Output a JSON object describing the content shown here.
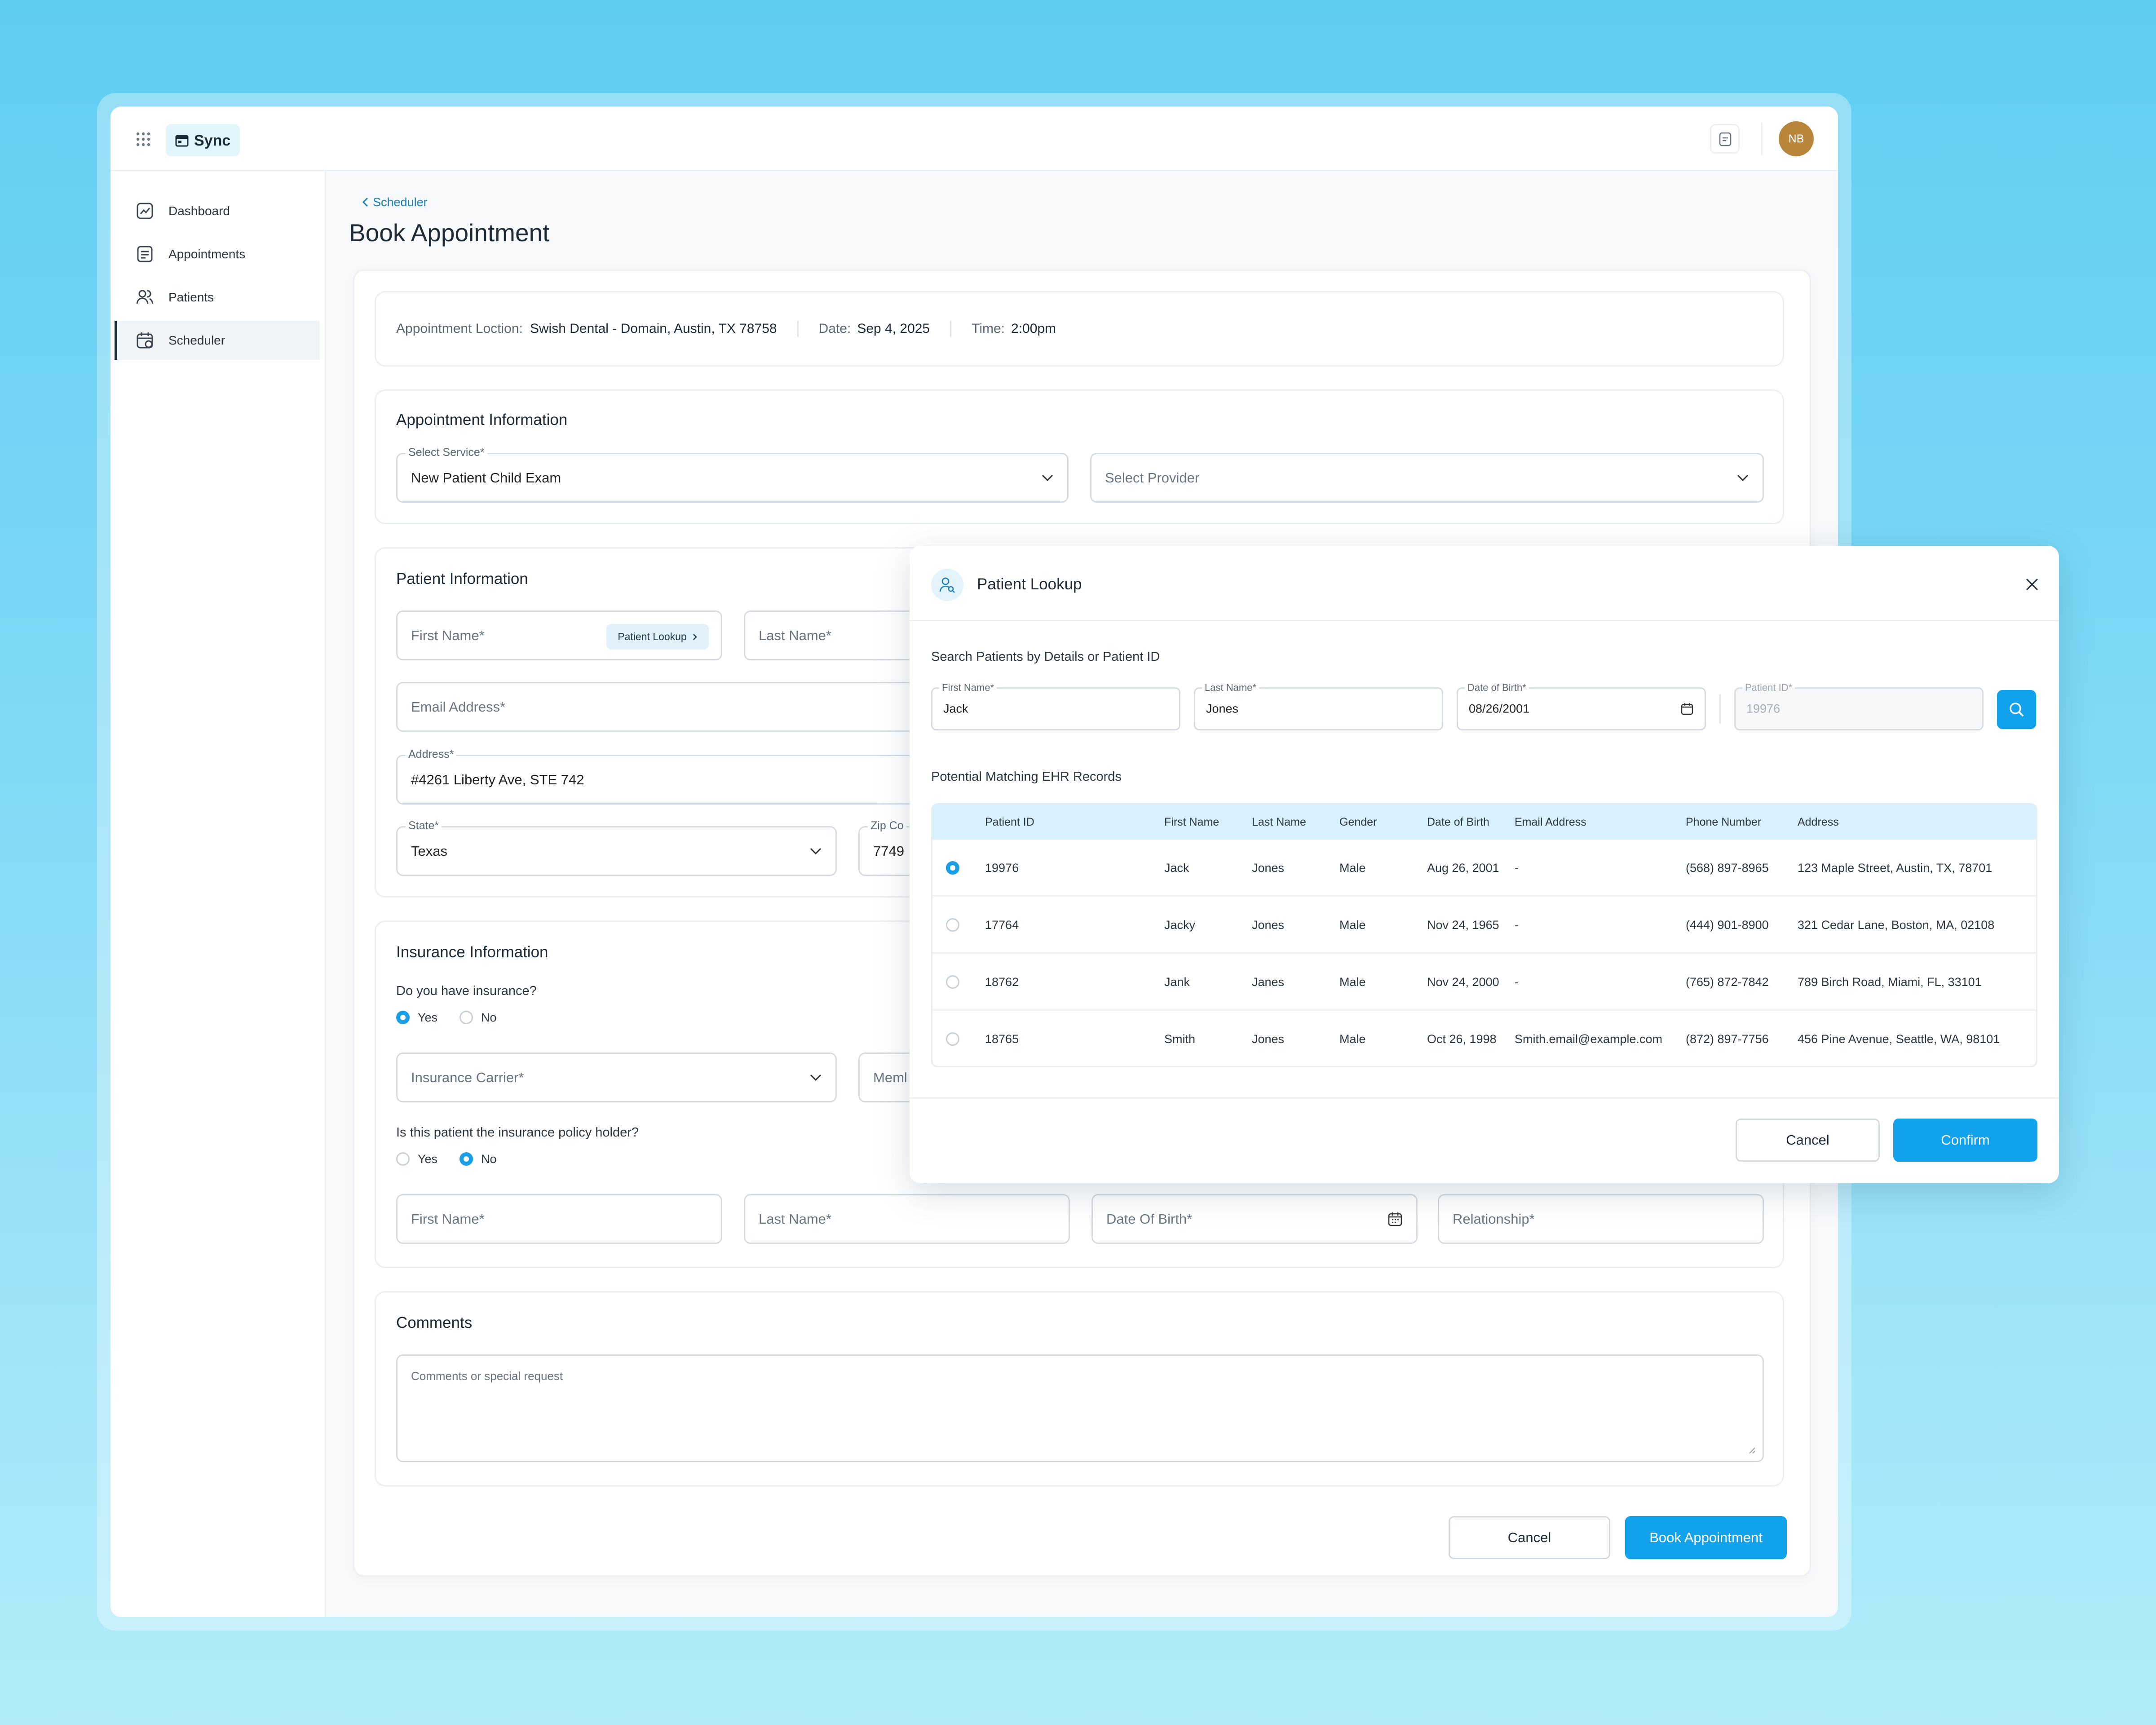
{
  "app": {
    "brand": "Sync",
    "avatar_initials": "NB"
  },
  "sidebar": {
    "items": [
      {
        "label": "Dashboard"
      },
      {
        "label": "Appointments"
      },
      {
        "label": "Patients"
      },
      {
        "label": "Scheduler"
      }
    ]
  },
  "page": {
    "breadcrumb": "Scheduler",
    "title": "Book Appointment"
  },
  "summary": {
    "location_label": "Appointment Loction:",
    "location_value": "Swish Dental - Domain, Austin, TX 78758",
    "date_label": "Date:",
    "date_value": "Sep 4, 2025",
    "time_label": "Time:",
    "time_value": "2:00pm"
  },
  "appointment_info": {
    "title": "Appointment Information",
    "service_label": "Select Service*",
    "service_value": "New Patient Child Exam",
    "provider_placeholder": "Select Provider"
  },
  "patient_info": {
    "title": "Patient Information",
    "first_name_placeholder": "First Name*",
    "lookup_button": "Patient Lookup",
    "last_name_placeholder": "Last Name*",
    "email_placeholder": "Email Address*",
    "address_label": "Address*",
    "address_value": "#4261 Liberty Ave, STE 742",
    "state_label": "State*",
    "state_value": "Texas",
    "zip_label": "Zip Co",
    "zip_value": "7749"
  },
  "insurance": {
    "title": "Insurance Information",
    "question1": "Do you have insurance?",
    "yes": "Yes",
    "no": "No",
    "carrier_placeholder": "Insurance Carrier*",
    "member_placeholder": "Meml",
    "question2": "Is this patient the insurance policy holder?",
    "holder_first_placeholder": "First Name*",
    "holder_last_placeholder": "Last Name*",
    "holder_dob_placeholder": "Date Of Birth*",
    "relationship_placeholder": "Relationship*"
  },
  "comments": {
    "title": "Comments",
    "placeholder": "Comments or special request"
  },
  "footer": {
    "cancel": "Cancel",
    "book": "Book Appointment"
  },
  "modal": {
    "title": "Patient Lookup",
    "search_heading": "Search Patients by Details or Patient ID",
    "fields": {
      "first_name_label": "First Name*",
      "first_name_value": "Jack",
      "last_name_label": "Last Name*",
      "last_name_value": "Jones",
      "dob_label": "Date of Birth*",
      "dob_value": "08/26/2001",
      "pid_label": "Patient ID*",
      "pid_value": "19976"
    },
    "results_heading": "Potential Matching EHR Records",
    "columns": [
      "Patient ID",
      "First Name",
      "Last Name",
      "Gender",
      "Date of Birth",
      "Email Address",
      "Phone Number",
      "Address"
    ],
    "rows": [
      {
        "selected": true,
        "id": "19976",
        "first": "Jack",
        "last": "Jones",
        "gender": "Male",
        "dob": "Aug 26, 2001",
        "email": "-",
        "phone": "(568) 897-8965",
        "address": "123 Maple Street, Austin, TX, 78701"
      },
      {
        "selected": false,
        "id": "17764",
        "first": "Jacky",
        "last": "Jones",
        "gender": "Male",
        "dob": "Nov 24, 1965",
        "email": "-",
        "phone": "(444) 901-8900",
        "address": "321 Cedar Lane, Boston, MA, 02108"
      },
      {
        "selected": false,
        "id": "18762",
        "first": "Jank",
        "last": "Janes",
        "gender": "Male",
        "dob": "Nov 24, 2000",
        "email": "-",
        "phone": "(765) 872-7842",
        "address": "789 Birch Road, Miami, FL, 33101"
      },
      {
        "selected": false,
        "id": "18765",
        "first": "Smith",
        "last": "Jones",
        "gender": "Male",
        "dob": "Oct 26, 1998",
        "email": "Smith.email@example.com",
        "phone": "(872) 897-7756",
        "address": "456 Pine Avenue, Seattle, WA, 98101"
      }
    ],
    "cancel": "Cancel",
    "confirm": "Confirm"
  },
  "colors": {
    "accent": "#12a2ec",
    "background": "#5ecdf2",
    "avatar": "#b8863a"
  }
}
